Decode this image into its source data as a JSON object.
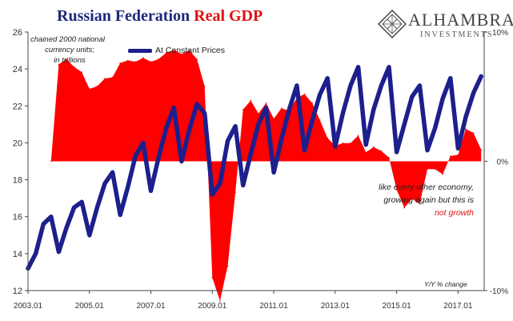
{
  "title": {
    "part1": "Russian Federation",
    "part2": "Real GDP",
    "part1_color": "#1f2a7a",
    "part2_color": "#e01010"
  },
  "logo": {
    "name": "ALHAMBRA",
    "subtitle": "INVESTMENTS",
    "icon": "diamond-lattice-icon"
  },
  "units_note": [
    "chained 2000 national",
    "currency units;",
    "in trillions"
  ],
  "annotation": {
    "line1": "like every other economy,",
    "line2": "growing again but this is",
    "line3": "not growth"
  },
  "right_axis_label": "Y/Y % change",
  "chart_data": {
    "type": "line",
    "x_ticks": [
      "2003.01",
      "2005.01",
      "2007.01",
      "2009.01",
      "2011.01",
      "2013.01",
      "2015.01",
      "2017.01"
    ],
    "left_axis": {
      "ylim": [
        12,
        26
      ],
      "ticks": [
        12,
        14,
        16,
        18,
        20,
        22,
        24,
        26
      ],
      "tick_labels": [
        "12",
        "14",
        "16",
        "18",
        "20",
        "22",
        "24",
        "26"
      ]
    },
    "right_axis": {
      "ylim": [
        -10,
        10
      ],
      "ticks": [
        -10,
        0,
        10
      ],
      "tick_labels": [
        "-10%",
        "0%",
        "10%"
      ]
    },
    "grid": false,
    "legend_position": "top-left",
    "series": [
      {
        "name": "At Constant Prices",
        "kind": "line",
        "axis": "left",
        "color": "#1c1f8c",
        "x": [
          "2003.01",
          "2003.04",
          "2003.07",
          "2003.10",
          "2004.01",
          "2004.04",
          "2004.07",
          "2004.10",
          "2005.01",
          "2005.04",
          "2005.07",
          "2005.10",
          "2006.01",
          "2006.04",
          "2006.07",
          "2006.10",
          "2007.01",
          "2007.04",
          "2007.07",
          "2007.10",
          "2008.01",
          "2008.04",
          "2008.07",
          "2008.10",
          "2009.01",
          "2009.04",
          "2009.07",
          "2009.10",
          "2010.01",
          "2010.04",
          "2010.07",
          "2010.10",
          "2011.01",
          "2011.04",
          "2011.07",
          "2011.10",
          "2012.01",
          "2012.04",
          "2012.07",
          "2012.10",
          "2013.01",
          "2013.04",
          "2013.07",
          "2013.10",
          "2014.01",
          "2014.04",
          "2014.07",
          "2014.10",
          "2015.01",
          "2015.04",
          "2015.07",
          "2015.10",
          "2016.01",
          "2016.04",
          "2016.07",
          "2016.10",
          "2017.01",
          "2017.04",
          "2017.07",
          "2017.10"
        ],
        "values": [
          13.2,
          14.0,
          15.6,
          16.0,
          14.1,
          15.4,
          16.5,
          16.8,
          15.0,
          16.5,
          17.8,
          18.4,
          16.1,
          17.6,
          19.3,
          20.0,
          17.4,
          19.2,
          20.8,
          21.9,
          19.0,
          20.7,
          22.1,
          21.6,
          17.2,
          17.8,
          20.1,
          20.9,
          17.7,
          19.4,
          21.0,
          21.9,
          18.4,
          20.2,
          21.8,
          23.1,
          19.6,
          21.2,
          22.6,
          23.5,
          19.8,
          21.6,
          23.1,
          24.1,
          19.9,
          21.8,
          23.1,
          24.1,
          19.5,
          21.0,
          22.5,
          23.1,
          19.6,
          20.8,
          22.4,
          23.5,
          19.7,
          21.4,
          22.7,
          23.6
        ]
      },
      {
        "name": "",
        "kind": "area",
        "axis": "right",
        "color": "#ff0000",
        "x": [
          "2003.10",
          "2004.01",
          "2004.04",
          "2004.07",
          "2004.10",
          "2005.01",
          "2005.04",
          "2005.07",
          "2005.10",
          "2006.01",
          "2006.04",
          "2006.07",
          "2006.10",
          "2007.01",
          "2007.04",
          "2007.07",
          "2007.10",
          "2008.01",
          "2008.04",
          "2008.07",
          "2008.10",
          "2009.01",
          "2009.04",
          "2009.07",
          "2009.10",
          "2010.01",
          "2010.04",
          "2010.07",
          "2010.10",
          "2011.01",
          "2011.04",
          "2011.07",
          "2011.10",
          "2012.01",
          "2012.04",
          "2012.07",
          "2012.10",
          "2013.01",
          "2013.04",
          "2013.07",
          "2013.10",
          "2014.01",
          "2014.04",
          "2014.07",
          "2014.10",
          "2015.01",
          "2015.04",
          "2015.07",
          "2015.10",
          "2016.01",
          "2016.04",
          "2016.07",
          "2016.10",
          "2017.01",
          "2017.04",
          "2017.07",
          "2017.10"
        ],
        "values": [
          0.0,
          7.5,
          7.9,
          7.3,
          6.9,
          5.6,
          5.8,
          6.4,
          6.5,
          7.6,
          7.8,
          7.7,
          8.0,
          7.7,
          7.9,
          8.4,
          8.6,
          8.3,
          8.6,
          7.9,
          5.8,
          -9.0,
          -10.8,
          -8.1,
          -2.4,
          4.0,
          4.7,
          3.7,
          4.5,
          3.3,
          4.1,
          3.9,
          4.9,
          5.2,
          4.5,
          3.2,
          1.8,
          1.2,
          1.4,
          1.4,
          2.0,
          0.7,
          1.1,
          0.8,
          0.3,
          -2.2,
          -3.6,
          -2.9,
          -3.3,
          -0.6,
          -0.6,
          -1.0,
          0.4,
          0.5,
          2.5,
          2.2,
          0.9
        ]
      }
    ]
  }
}
